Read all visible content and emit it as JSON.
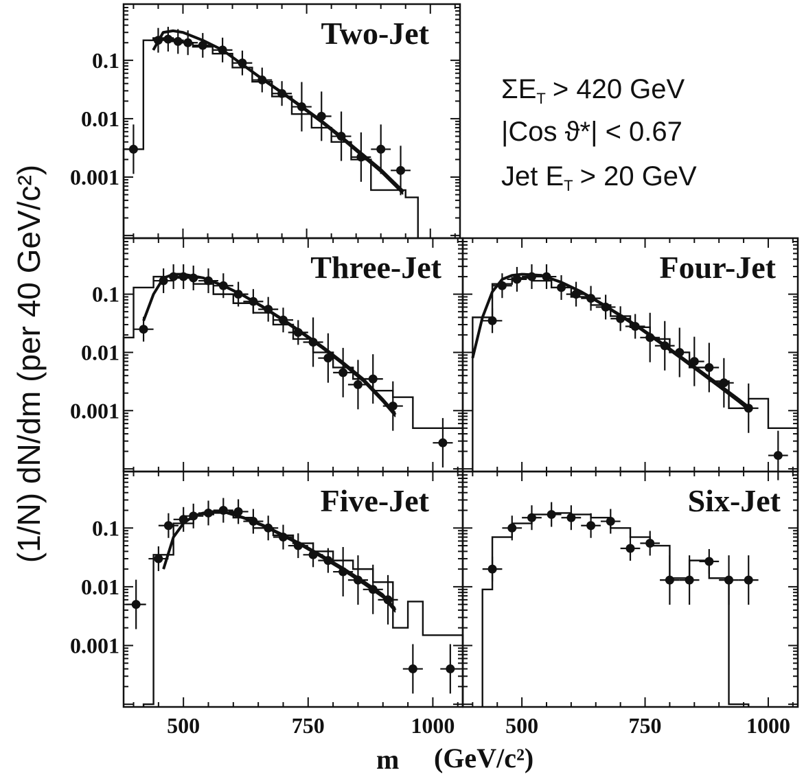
{
  "chart_data": [
    {
      "type": "line",
      "panel": "two-jet",
      "title": "Two-Jet",
      "xlabel": "",
      "ylabel": "",
      "xlim": [
        380,
        1060
      ],
      "ylim": [
        9e-05,
        0.8
      ],
      "yscale": "log",
      "ytick_labels": [
        "0.1",
        "0.01",
        "0.001"
      ],
      "yticks": [
        0.1,
        0.01,
        0.001
      ],
      "xticks": [
        500,
        750,
        1000
      ],
      "xtick_labels": [],
      "annotations": [
        "ΣE",
        "> 420 GeV",
        "|Cos ϑ*| < 0.67",
        "Jet E",
        "> 20 GeV"
      ],
      "points": {
        "x": [
          400,
          450,
          470,
          490,
          510,
          540,
          580,
          620,
          660,
          700,
          740,
          780,
          820,
          860,
          900,
          940
        ],
        "y": [
          0.003,
          0.22,
          0.23,
          0.21,
          0.2,
          0.18,
          0.15,
          0.09,
          0.046,
          0.027,
          0.016,
          0.011,
          0.005,
          0.0022,
          0.003,
          0.0013
        ],
        "xerr": 20
      },
      "histogram": {
        "edges": [
          380,
          400,
          420,
          440,
          460,
          480,
          500,
          520,
          560,
          600,
          640,
          680,
          720,
          760,
          800,
          840,
          880,
          920,
          950,
          965,
          975
        ],
        "values": [
          0.003,
          0.003,
          0.22,
          0.24,
          0.24,
          0.22,
          0.2,
          0.17,
          0.13,
          0.075,
          0.043,
          0.024,
          0.012,
          0.007,
          0.004,
          0.002,
          0.0006,
          0.0006,
          0.00045,
          0.00045
        ]
      },
      "curve": {
        "x": [
          440,
          460,
          480,
          500,
          540,
          580,
          620,
          660,
          700,
          740,
          780,
          820,
          860,
          900,
          945
        ],
        "y": [
          0.15,
          0.3,
          0.32,
          0.3,
          0.22,
          0.15,
          0.085,
          0.048,
          0.028,
          0.016,
          0.009,
          0.0048,
          0.0025,
          0.0013,
          0.00055
        ]
      }
    },
    {
      "type": "line",
      "panel": "three-jet",
      "title": "Three-Jet",
      "xlim": [
        380,
        1060
      ],
      "ylim": [
        9e-05,
        0.8
      ],
      "yscale": "log",
      "ytick_labels": [
        "0.1",
        "0.01",
        "0.001"
      ],
      "yticks": [
        0.1,
        0.01,
        0.001
      ],
      "xticks": [
        500,
        750,
        1000
      ],
      "points": {
        "x": [
          420,
          460,
          480,
          500,
          520,
          550,
          580,
          610,
          640,
          670,
          700,
          730,
          760,
          790,
          820,
          850,
          880,
          920,
          1020
        ],
        "y": [
          0.025,
          0.17,
          0.2,
          0.2,
          0.19,
          0.17,
          0.14,
          0.1,
          0.075,
          0.055,
          0.036,
          0.022,
          0.015,
          0.008,
          0.0045,
          0.0028,
          0.0035,
          0.0012,
          0.00028
        ],
        "xerr": 20
      },
      "histogram": {
        "edges": [
          380,
          400,
          440,
          480,
          520,
          560,
          600,
          640,
          680,
          720,
          760,
          800,
          840,
          880,
          920,
          960,
          1000,
          1060
        ],
        "values": [
          0.018,
          0.13,
          0.2,
          0.19,
          0.15,
          0.1,
          0.07,
          0.048,
          0.03,
          0.017,
          0.01,
          0.0055,
          0.0035,
          0.0022,
          0.0017,
          0.0005,
          0.0005
        ]
      },
      "curve": {
        "x": [
          420,
          440,
          460,
          480,
          500,
          540,
          580,
          620,
          660,
          700,
          740,
          780,
          820,
          860,
          900,
          925
        ],
        "y": [
          0.035,
          0.1,
          0.19,
          0.22,
          0.22,
          0.19,
          0.14,
          0.095,
          0.06,
          0.036,
          0.021,
          0.012,
          0.0065,
          0.0034,
          0.0015,
          0.00085
        ]
      }
    },
    {
      "type": "line",
      "panel": "four-jet",
      "title": "Four-Jet",
      "xlim": [
        380,
        1060
      ],
      "ylim": [
        9e-05,
        0.8
      ],
      "yscale": "log",
      "ytick_labels": [],
      "yticks": [
        0.1,
        0.01,
        0.001
      ],
      "xticks": [
        500,
        750,
        1000
      ],
      "points": {
        "x": [
          440,
          460,
          490,
          520,
          550,
          580,
          610,
          640,
          670,
          700,
          730,
          760,
          790,
          820,
          850,
          880,
          910,
          960,
          1020
        ],
        "y": [
          0.035,
          0.14,
          0.18,
          0.2,
          0.2,
          0.13,
          0.1,
          0.085,
          0.06,
          0.038,
          0.028,
          0.018,
          0.013,
          0.01,
          0.007,
          0.0055,
          0.003,
          0.0011,
          0.00017
        ],
        "xerr": 20
      },
      "histogram": {
        "edges": [
          400,
          440,
          480,
          520,
          560,
          600,
          640,
          680,
          720,
          760,
          800,
          840,
          880,
          920,
          960,
          1000,
          1060
        ],
        "values": [
          0.04,
          0.15,
          0.19,
          0.17,
          0.13,
          0.09,
          0.065,
          0.042,
          0.027,
          0.017,
          0.01,
          0.0055,
          0.0032,
          0.0011,
          0.0016,
          0.0005
        ]
      },
      "curve": {
        "x": [
          400,
          420,
          440,
          460,
          480,
          500,
          540,
          580,
          620,
          660,
          700,
          740,
          780,
          820,
          860,
          900,
          940,
          960
        ],
        "y": [
          0.008,
          0.04,
          0.11,
          0.18,
          0.21,
          0.22,
          0.21,
          0.16,
          0.11,
          0.07,
          0.043,
          0.026,
          0.015,
          0.0085,
          0.0048,
          0.0027,
          0.0015,
          0.0011
        ]
      }
    },
    {
      "type": "line",
      "panel": "five-jet",
      "title": "Five-Jet",
      "xlim": [
        380,
        1060
      ],
      "ylim": [
        9e-05,
        0.8
      ],
      "yscale": "log",
      "ytick_labels": [
        "0.1",
        "0.01",
        "0.001"
      ],
      "yticks": [
        0.1,
        0.01,
        0.001
      ],
      "xticks": [
        500,
        750,
        1000
      ],
      "xtick_labels": [
        "500",
        "750",
        "1000"
      ],
      "points": {
        "x": [
          405,
          450,
          470,
          500,
          520,
          550,
          580,
          610,
          640,
          670,
          700,
          730,
          760,
          790,
          820,
          850,
          880,
          910,
          960,
          1035
        ],
        "y": [
          0.005,
          0.03,
          0.11,
          0.14,
          0.16,
          0.18,
          0.2,
          0.19,
          0.13,
          0.1,
          0.07,
          0.05,
          0.035,
          0.028,
          0.018,
          0.013,
          0.009,
          0.006,
          0.0004,
          0.0004
        ],
        "xerr": 20
      },
      "histogram": {
        "edges": [
          420,
          440,
          480,
          520,
          560,
          600,
          640,
          680,
          720,
          760,
          800,
          840,
          880,
          920,
          950,
          980,
          1020,
          1060
        ],
        "values": [
          0.0001,
          0.035,
          0.12,
          0.17,
          0.18,
          0.15,
          0.1,
          0.075,
          0.055,
          0.04,
          0.028,
          0.02,
          0.012,
          0.002,
          0.0056,
          0.0015,
          0.0015
        ]
      },
      "curve": {
        "x": [
          460,
          480,
          500,
          520,
          540,
          560,
          580,
          620,
          660,
          700,
          740,
          780,
          820,
          860,
          900,
          925
        ],
        "y": [
          0.02,
          0.07,
          0.12,
          0.16,
          0.18,
          0.19,
          0.19,
          0.15,
          0.11,
          0.075,
          0.05,
          0.032,
          0.02,
          0.012,
          0.007,
          0.004
        ]
      }
    },
    {
      "type": "line",
      "panel": "six-jet",
      "title": "Six-Jet",
      "xlim": [
        380,
        1060
      ],
      "ylim": [
        9e-05,
        0.8
      ],
      "yscale": "log",
      "ytick_labels": [],
      "yticks": [
        0.1,
        0.01,
        0.001
      ],
      "xticks": [
        500,
        750,
        1000
      ],
      "xtick_labels": [
        "500",
        "750",
        "1000"
      ],
      "points": {
        "x": [
          440,
          480,
          520,
          560,
          600,
          640,
          680,
          720,
          760,
          800,
          840,
          880,
          920,
          960
        ],
        "y": [
          0.02,
          0.1,
          0.15,
          0.17,
          0.15,
          0.11,
          0.13,
          0.045,
          0.055,
          0.013,
          0.013,
          0.027,
          0.013,
          0.013
        ],
        "xerr": 20
      },
      "histogram": {
        "edges": [
          420,
          440,
          480,
          520,
          560,
          600,
          640,
          680,
          720,
          760,
          800,
          840,
          880,
          920,
          960
        ],
        "values": [
          0.009,
          0.07,
          0.12,
          0.17,
          0.18,
          0.17,
          0.15,
          0.1,
          0.07,
          0.05,
          0.014,
          0.028,
          0.014,
          0.0001
        ]
      },
      "curve": null
    }
  ],
  "figure": {
    "xlabel": "m",
    "xlabel_units": "(GeV/c²)",
    "ylabel": "(1/N)  dN/dm  (per 40 GeV/c²)",
    "cut_sum_et_prefix": "ΣE",
    "cut_sum_et_sub": "T",
    "cut_sum_et_suffix": "> 420 GeV",
    "cut_cos": "|Cos ϑ*| < 0.67",
    "cut_jet_et_prefix": "Jet E",
    "cut_jet_et_sub": "T",
    "cut_jet_et_suffix": "> 20 GeV"
  }
}
